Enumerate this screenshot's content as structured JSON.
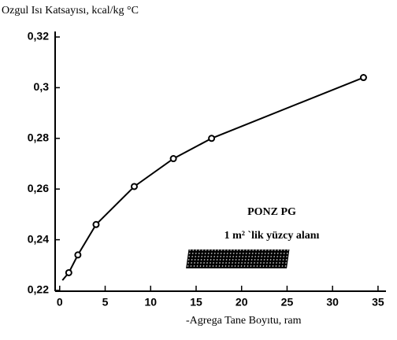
{
  "chart_data": {
    "type": "line",
    "title": "Ozgul Isı Katsayısı, kcal/kg °C",
    "x_label": "-Agrega Tane Boyıtu, ram",
    "annotations": [
      "PONZ PG",
      "1 m² `lik yüzcy alanı"
    ],
    "series": [
      {
        "name": "PONZ PG",
        "color": "#000000",
        "x": [
          0.3,
          1,
          2,
          4,
          8.2,
          12.5,
          16.7,
          33.4
        ],
        "values": [
          0.224,
          0.227,
          0.234,
          0.246,
          0.261,
          0.272,
          0.28,
          0.304
        ]
      }
    ],
    "xlim": [
      -0.5,
      35.7
    ],
    "xticks": [
      0,
      5,
      10,
      15,
      20,
      25,
      30,
      35
    ],
    "ylim": [
      0.22,
      0.32
    ],
    "yticks": [
      {
        "value": 0.22,
        "label": "0,22"
      },
      {
        "value": 0.24,
        "label": "0,24"
      },
      {
        "value": 0.26,
        "label": "0,26"
      },
      {
        "value": 0.28,
        "label": "0,28"
      },
      {
        "value": 0.3,
        "label": "0,3"
      },
      {
        "value": 0.32,
        "label": "0,32"
      }
    ]
  }
}
